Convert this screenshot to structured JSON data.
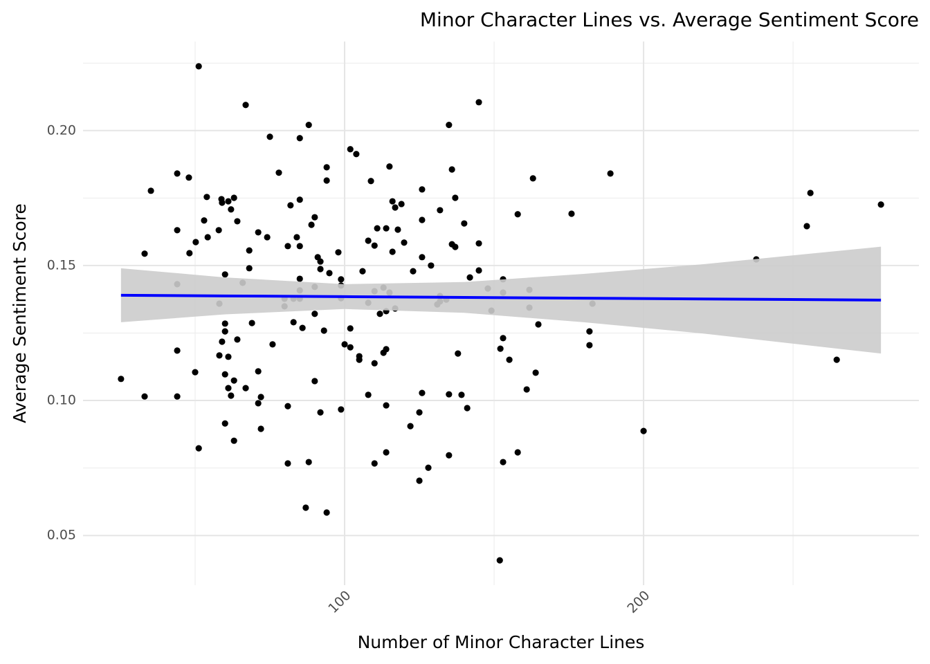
{
  "chart_data": {
    "type": "scatter",
    "title": "Minor Character Lines vs. Average Sentiment Score",
    "x_label": "Number of Minor Character Lines",
    "y_label": "Average Sentiment Score",
    "color": "#000000",
    "x": [
      25.2,
      33.1,
      33.1,
      35.2,
      44.0,
      44.0,
      44.0,
      44.0,
      44.0,
      47.9,
      48.1,
      50.0,
      50.2,
      51.2,
      51.2,
      53.0,
      53.9,
      54.2,
      57.9,
      58.1,
      58.1,
      58.8,
      59.0,
      59.0,
      60.0,
      60.0,
      60.0,
      60.0,
      60.0,
      61.1,
      61.1,
      61.1,
      62.0,
      62.0,
      63.0,
      63.0,
      63.0,
      64.1,
      64.1,
      65.9,
      66.9,
      66.9,
      68.1,
      68.1,
      69.0,
      71.1,
      71.1,
      71.1,
      72.0,
      72.0,
      74.1,
      75.0,
      75.9,
      78.0,
      79.9,
      79.9,
      81.0,
      81.0,
      81.0,
      81.9,
      82.9,
      82.9,
      84.0,
      85.0,
      85.0,
      85.0,
      85.0,
      85.0,
      85.0,
      85.9,
      87.0,
      88.0,
      88.0,
      88.9,
      90.0,
      90.0,
      90.0,
      90.0,
      91.0,
      91.9,
      91.9,
      91.9,
      93.1,
      94.0,
      94.0,
      94.0,
      94.9,
      97.9,
      98.8,
      98.8,
      98.8,
      98.8,
      100.0,
      101.9,
      101.9,
      101.9,
      103.9,
      104.9,
      104.9,
      106.0,
      107.9,
      107.9,
      107.9,
      108.8,
      110.0,
      110.0,
      110.0,
      110.0,
      110.9,
      111.8,
      113.0,
      113.0,
      113.9,
      113.9,
      113.9,
      113.9,
      113.9,
      115.0,
      115.0,
      116.0,
      116.0,
      116.9,
      116.9,
      117.8,
      119.0,
      119.9,
      122.0,
      122.9,
      125.0,
      125.0,
      125.9,
      125.9,
      125.9,
      125.9,
      128.0,
      128.9,
      131.0,
      131.9,
      131.9,
      131.9,
      134.0,
      134.9,
      134.9,
      134.9,
      135.9,
      135.9,
      137.0,
      137.0,
      137.9,
      139.1,
      140.0,
      141.0,
      141.9,
      144.9,
      144.9,
      144.9,
      147.9,
      149.1,
      152.1,
      153.0,
      153.0,
      153.0,
      153.0,
      151.9,
      155.1,
      157.9,
      157.9,
      160.9,
      161.8,
      161.8,
      163.0,
      163.9,
      164.8,
      175.9,
      181.9,
      181.9,
      182.9,
      188.9,
      200.0,
      237.7,
      254.6,
      255.8,
      264.6,
      279.4
    ],
    "y": [
      0.108,
      0.1544,
      0.1015,
      0.1777,
      0.1841,
      0.1631,
      0.1431,
      0.1185,
      0.1015,
      0.1826,
      0.1546,
      0.1105,
      0.1587,
      0.2238,
      0.0823,
      0.1667,
      0.1754,
      0.1605,
      0.1631,
      0.1359,
      0.1167,
      0.1746,
      0.1733,
      0.1218,
      0.1467,
      0.1285,
      0.1256,
      0.1097,
      0.0915,
      0.1738,
      0.1162,
      0.1046,
      0.1708,
      0.1018,
      0.1751,
      0.1074,
      0.0851,
      0.1664,
      0.1226,
      0.1436,
      0.2095,
      0.1046,
      0.1556,
      0.149,
      0.1287,
      0.1623,
      0.1108,
      0.099,
      0.1013,
      0.0895,
      0.1605,
      0.1977,
      0.1208,
      0.1844,
      0.1377,
      0.1349,
      0.1572,
      0.0979,
      0.0767,
      0.1723,
      0.1377,
      0.129,
      0.1605,
      0.1972,
      0.1744,
      0.1572,
      0.1451,
      0.1408,
      0.1377,
      0.1269,
      0.0603,
      0.2021,
      0.0772,
      0.1651,
      0.1679,
      0.1421,
      0.1321,
      0.1072,
      0.1531,
      0.1515,
      0.1487,
      0.0956,
      0.1259,
      0.1864,
      0.1815,
      0.0585,
      0.1472,
      0.1549,
      0.1449,
      0.1426,
      0.1379,
      0.0967,
      0.1208,
      0.1931,
      0.1267,
      0.1197,
      0.1913,
      0.1164,
      0.1151,
      0.1479,
      0.1592,
      0.1362,
      0.1021,
      0.1813,
      0.1574,
      0.1405,
      0.1138,
      0.0767,
      0.1638,
      0.1321,
      0.1418,
      0.1177,
      0.1638,
      0.1331,
      0.119,
      0.0982,
      0.0808,
      0.1867,
      0.14,
      0.1738,
      0.1551,
      0.1715,
      0.1341,
      0.1633,
      0.1728,
      0.1585,
      0.0905,
      0.1479,
      0.0956,
      0.0703,
      0.1782,
      0.1669,
      0.1531,
      0.1028,
      0.0751,
      0.15,
      0.1356,
      0.1705,
      0.1387,
      0.1367,
      0.1374,
      0.2021,
      0.1023,
      0.0797,
      0.1856,
      0.1579,
      0.1569,
      0.1751,
      0.1174,
      0.1021,
      0.1656,
      0.0972,
      0.1456,
      0.2105,
      0.1582,
      0.1482,
      0.1415,
      0.1333,
      0.1192,
      0.1449,
      0.14,
      0.1231,
      0.0772,
      0.0408,
      0.1151,
      0.169,
      0.0808,
      0.1041,
      0.141,
      0.1344,
      0.1823,
      0.1103,
      0.1282,
      0.1692,
      0.1256,
      0.1205,
      0.1359,
      0.1841,
      0.0887,
      0.1523,
      0.1646,
      0.1769,
      0.1151,
      0.1726
    ],
    "fit": {
      "x": [
        25.2,
        60,
        100,
        140,
        180,
        220,
        279.4
      ],
      "values": [
        0.139,
        0.13875,
        0.13847,
        0.13819,
        0.13791,
        0.13762,
        0.1372
      ],
      "lower": [
        0.129,
        0.1319,
        0.1339,
        0.1325,
        0.129,
        0.1248,
        0.1174
      ],
      "upper": [
        0.149,
        0.1456,
        0.1431,
        0.1439,
        0.1469,
        0.1505,
        0.157
      ],
      "color": "#0000ff",
      "band_color": "#cccccc"
    },
    "xlim": [
      12.5,
      292.1
    ],
    "ylim": [
      0.0316,
      0.233
    ],
    "xticks": [
      100,
      200
    ],
    "yticks": [
      0.05,
      {
        "value": 0.1,
        "label": "0.10"
      },
      0.15,
      {
        "value": 0.2,
        "label": "0.20"
      }
    ],
    "x_minor_grid": [
      50,
      150,
      250
    ],
    "y_minor_grid": [
      0.075,
      0.125,
      0.175,
      0.225
    ],
    "grid": true
  }
}
